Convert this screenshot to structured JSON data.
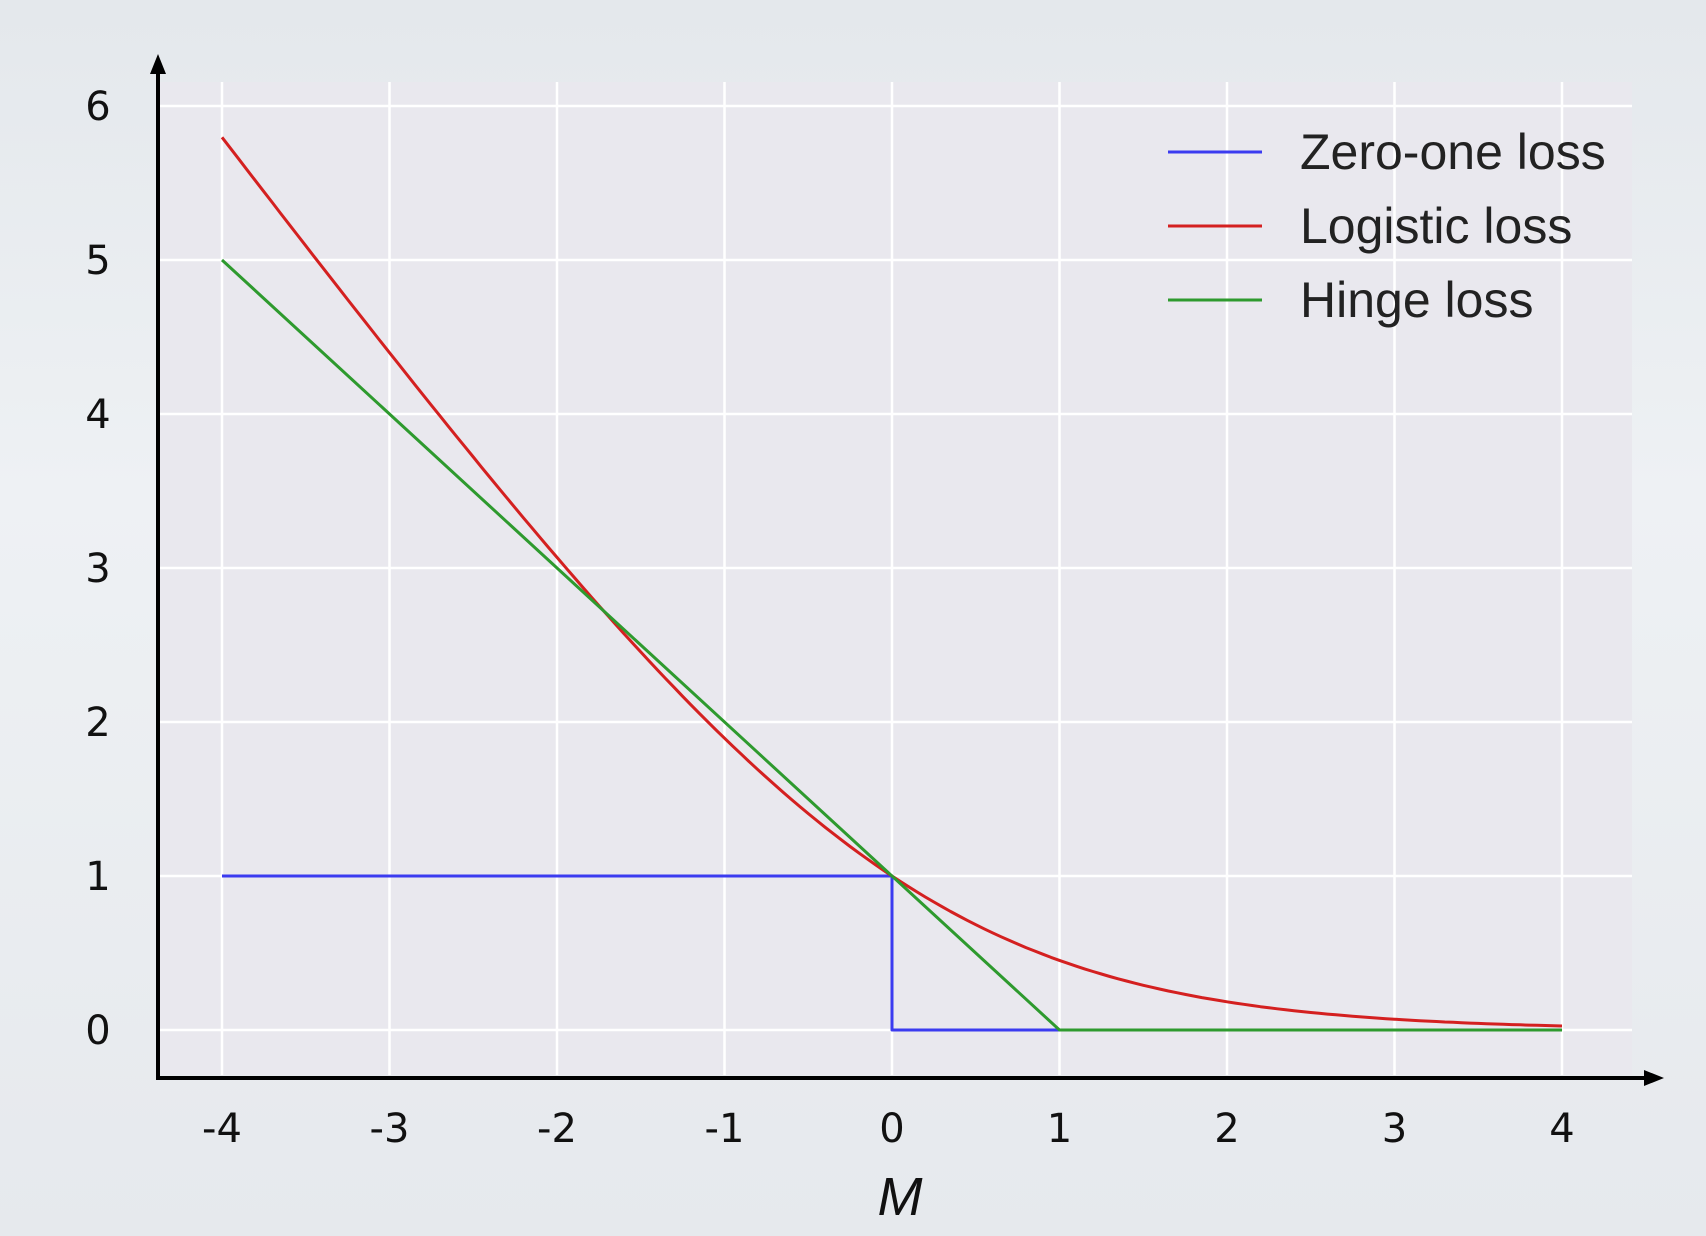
{
  "chart_data": {
    "type": "line",
    "title": "",
    "xlabel": "M",
    "ylabel": "",
    "xlim": [
      -4,
      4
    ],
    "ylim": [
      0,
      6
    ],
    "x_ticks": [
      -4,
      -3,
      -2,
      -1,
      0,
      1,
      2,
      3,
      4
    ],
    "y_ticks": [
      0,
      1,
      2,
      3,
      4,
      5,
      6
    ],
    "grid": true,
    "legend_position": "top-right",
    "series": [
      {
        "name": "Zero-one loss",
        "color": "#3b3bf0",
        "x": [
          -4,
          0,
          0,
          1
        ],
        "y": [
          1,
          1,
          0,
          0
        ]
      },
      {
        "name": "Logistic loss",
        "color": "#d42020",
        "x": [
          -4,
          -3.5,
          -3,
          -2.5,
          -2,
          -1.5,
          -1,
          -0.5,
          0,
          0.5,
          1,
          1.5,
          2,
          2.5,
          3,
          3.5,
          4
        ],
        "y": [
          5.84,
          5.13,
          4.44,
          3.76,
          3.1,
          2.48,
          1.89,
          1.37,
          1.0,
          0.68,
          0.45,
          0.29,
          0.18,
          0.11,
          0.07,
          0.04,
          0.03
        ]
      },
      {
        "name": "Hinge loss",
        "color": "#2e9a2e",
        "x": [
          -4,
          1,
          4
        ],
        "y": [
          5,
          0,
          0
        ]
      }
    ]
  }
}
